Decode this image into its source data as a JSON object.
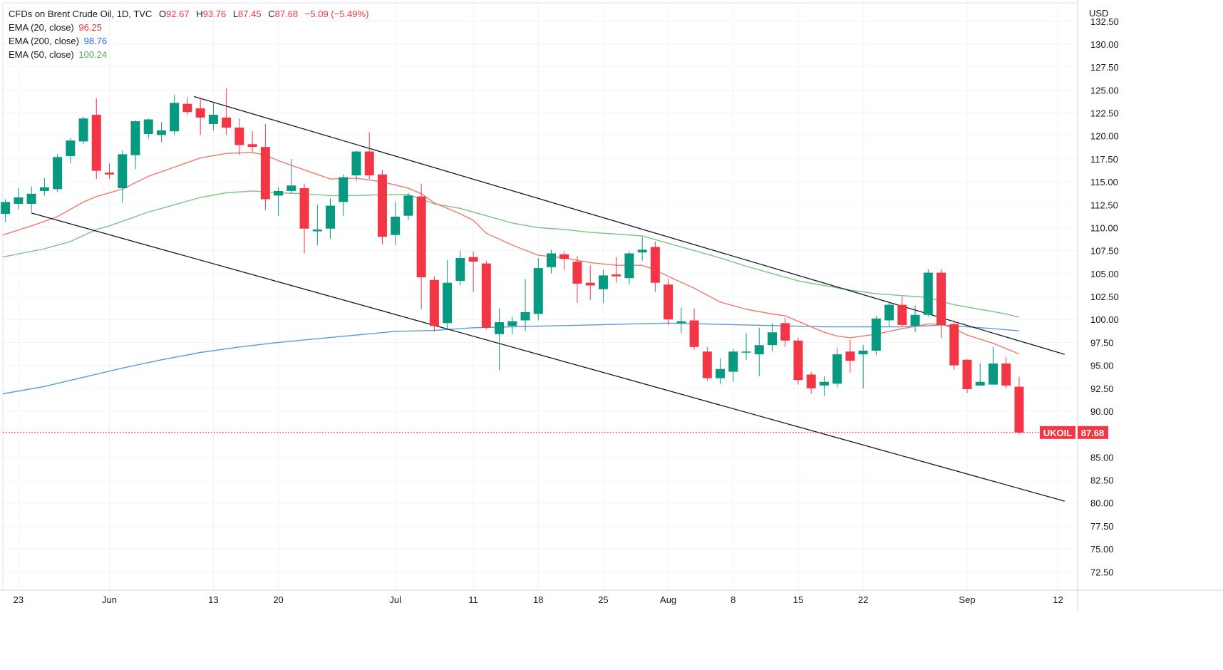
{
  "legend": {
    "title": "CFDs on Brent Crude Oil, 1D, TVC",
    "ohlc": [
      {
        "k": "O",
        "v": "92.67"
      },
      {
        "k": "H",
        "v": "93.76"
      },
      {
        "k": "L",
        "v": "87.45"
      },
      {
        "k": "C",
        "v": "87.68"
      }
    ],
    "change": "−5.09 (−5.49%)",
    "ema20": {
      "label": "EMA (20, close)",
      "value": "96.25",
      "color": "#f23645"
    },
    "ema200": {
      "label": "EMA (200, close)",
      "value": "98.76",
      "color": "#2962ff"
    },
    "ema50": {
      "label": "EMA (50, close)",
      "value": "100.24",
      "color": "#4caf50"
    }
  },
  "colors": {
    "up": "#089981",
    "down": "#f23645",
    "ema20": "#f5776b",
    "ema200": "#5b9bd5",
    "ema50": "#7bc47f",
    "trend": "#131722"
  },
  "chart_data": {
    "type": "candlestick",
    "title": "CFDs on Brent Crude Oil, 1D, TVC",
    "currency": "USD",
    "ylim": [
      70.5,
      134.5
    ],
    "y_ticks": [
      "132.50",
      "130.00",
      "127.50",
      "125.00",
      "122.50",
      "120.00",
      "117.50",
      "115.00",
      "112.50",
      "110.00",
      "107.50",
      "105.00",
      "102.50",
      "100.00",
      "97.50",
      "95.00",
      "92.50",
      "90.00",
      "85.00",
      "82.50",
      "80.00",
      "77.50",
      "75.00",
      "72.50"
    ],
    "x_ticks": [
      {
        "label": "23",
        "i": 0
      },
      {
        "label": "Jun",
        "i": 7
      },
      {
        "label": "13",
        "i": 15
      },
      {
        "label": "20",
        "i": 20
      },
      {
        "label": "Jul",
        "i": 29
      },
      {
        "label": "11",
        "i": 35
      },
      {
        "label": "18",
        "i": 40
      },
      {
        "label": "25",
        "i": 45
      },
      {
        "label": "Aug",
        "i": 50
      },
      {
        "label": "8",
        "i": 55
      },
      {
        "label": "15",
        "i": 60
      },
      {
        "label": "22",
        "i": 65
      },
      {
        "label": "Sep",
        "i": 73
      },
      {
        "label": "12",
        "i": 80
      }
    ],
    "x_range": [
      -1.2,
      81.5
    ],
    "candles": [
      {
        "i": -1,
        "o": 111.5,
        "h": 113.1,
        "l": 110.6,
        "c": 112.8
      },
      {
        "i": 0,
        "o": 112.6,
        "h": 114.3,
        "l": 112.0,
        "c": 113.3
      },
      {
        "i": 1,
        "o": 112.6,
        "h": 114.5,
        "l": 111.7,
        "c": 113.7
      },
      {
        "i": 2,
        "o": 114.0,
        "h": 115.4,
        "l": 113.5,
        "c": 114.4
      },
      {
        "i": 3,
        "o": 114.2,
        "h": 118.0,
        "l": 113.9,
        "c": 117.7
      },
      {
        "i": 4,
        "o": 117.8,
        "h": 119.8,
        "l": 117.0,
        "c": 119.5
      },
      {
        "i": 5,
        "o": 119.4,
        "h": 122.1,
        "l": 119.1,
        "c": 121.9
      },
      {
        "i": 6,
        "o": 122.3,
        "h": 124.1,
        "l": 115.3,
        "c": 116.2
      },
      {
        "i": 7,
        "o": 116.0,
        "h": 117.0,
        "l": 115.3,
        "c": 115.8
      },
      {
        "i": 8,
        "o": 114.3,
        "h": 118.4,
        "l": 112.7,
        "c": 118.0
      },
      {
        "i": 9,
        "o": 117.9,
        "h": 121.7,
        "l": 116.4,
        "c": 121.6
      },
      {
        "i": 10,
        "o": 120.2,
        "h": 121.9,
        "l": 119.7,
        "c": 121.8
      },
      {
        "i": 11,
        "o": 120.1,
        "h": 121.5,
        "l": 119.3,
        "c": 120.6
      },
      {
        "i": 12,
        "o": 120.5,
        "h": 124.5,
        "l": 120.1,
        "c": 123.6
      },
      {
        "i": 13,
        "o": 123.5,
        "h": 124.2,
        "l": 122.3,
        "c": 122.6
      },
      {
        "i": 14,
        "o": 123.0,
        "h": 124.1,
        "l": 120.1,
        "c": 122.0
      },
      {
        "i": 15,
        "o": 121.3,
        "h": 123.6,
        "l": 120.6,
        "c": 122.3
      },
      {
        "i": 16,
        "o": 122.0,
        "h": 125.2,
        "l": 120.1,
        "c": 120.9
      },
      {
        "i": 17,
        "o": 120.9,
        "h": 121.9,
        "l": 117.9,
        "c": 119.0
      },
      {
        "i": 18,
        "o": 119.1,
        "h": 120.5,
        "l": 118.2,
        "c": 118.8
      },
      {
        "i": 19,
        "o": 118.8,
        "h": 121.3,
        "l": 111.9,
        "c": 113.1
      },
      {
        "i": 20,
        "o": 113.5,
        "h": 114.4,
        "l": 111.3,
        "c": 114.0
      },
      {
        "i": 21,
        "o": 114.0,
        "h": 117.5,
        "l": 113.7,
        "c": 114.6
      },
      {
        "i": 22,
        "o": 114.3,
        "h": 114.8,
        "l": 107.2,
        "c": 109.9
      },
      {
        "i": 23,
        "o": 109.6,
        "h": 112.5,
        "l": 108.1,
        "c": 109.8
      },
      {
        "i": 24,
        "o": 109.9,
        "h": 113.2,
        "l": 108.8,
        "c": 112.4
      },
      {
        "i": 25,
        "o": 112.8,
        "h": 115.8,
        "l": 111.3,
        "c": 115.5
      },
      {
        "i": 26,
        "o": 115.7,
        "h": 118.4,
        "l": 115.1,
        "c": 118.3
      },
      {
        "i": 27,
        "o": 118.3,
        "h": 120.4,
        "l": 115.3,
        "c": 115.7
      },
      {
        "i": 28,
        "o": 115.8,
        "h": 116.3,
        "l": 108.2,
        "c": 109.0
      },
      {
        "i": 29,
        "o": 109.2,
        "h": 112.8,
        "l": 108.1,
        "c": 111.2
      },
      {
        "i": 30,
        "o": 111.3,
        "h": 113.8,
        "l": 110.8,
        "c": 113.5
      },
      {
        "i": 31,
        "o": 113.4,
        "h": 114.8,
        "l": 101.1,
        "c": 104.6
      },
      {
        "i": 32,
        "o": 104.3,
        "h": 104.7,
        "l": 98.7,
        "c": 99.3
      },
      {
        "i": 33,
        "o": 99.6,
        "h": 106.5,
        "l": 99.0,
        "c": 104.0
      },
      {
        "i": 34,
        "o": 104.2,
        "h": 107.5,
        "l": 103.7,
        "c": 106.7
      },
      {
        "i": 35,
        "o": 106.8,
        "h": 107.4,
        "l": 103.0,
        "c": 106.3
      },
      {
        "i": 36,
        "o": 106.1,
        "h": 106.4,
        "l": 98.9,
        "c": 99.1
      },
      {
        "i": 37,
        "o": 98.4,
        "h": 101.2,
        "l": 94.5,
        "c": 99.7
      },
      {
        "i": 38,
        "o": 99.3,
        "h": 100.3,
        "l": 98.4,
        "c": 99.8
      },
      {
        "i": 39,
        "o": 99.9,
        "h": 104.4,
        "l": 98.7,
        "c": 100.8
      },
      {
        "i": 40,
        "o": 100.6,
        "h": 106.7,
        "l": 99.9,
        "c": 105.6
      },
      {
        "i": 41,
        "o": 105.7,
        "h": 107.6,
        "l": 105.0,
        "c": 107.2
      },
      {
        "i": 42,
        "o": 107.1,
        "h": 107.4,
        "l": 105.4,
        "c": 106.6
      },
      {
        "i": 43,
        "o": 106.3,
        "h": 106.9,
        "l": 101.8,
        "c": 103.9
      },
      {
        "i": 44,
        "o": 104.0,
        "h": 105.9,
        "l": 102.1,
        "c": 103.7
      },
      {
        "i": 45,
        "o": 103.3,
        "h": 105.4,
        "l": 101.8,
        "c": 104.8
      },
      {
        "i": 46,
        "o": 104.9,
        "h": 106.8,
        "l": 104.0,
        "c": 104.7
      },
      {
        "i": 47,
        "o": 104.5,
        "h": 107.4,
        "l": 103.8,
        "c": 107.2
      },
      {
        "i": 48,
        "o": 107.3,
        "h": 109.0,
        "l": 106.4,
        "c": 107.6
      },
      {
        "i": 49,
        "o": 107.9,
        "h": 108.5,
        "l": 103.0,
        "c": 104.0
      },
      {
        "i": 50,
        "o": 103.8,
        "h": 104.4,
        "l": 99.4,
        "c": 100.0
      },
      {
        "i": 51,
        "o": 99.6,
        "h": 101.3,
        "l": 98.5,
        "c": 99.8
      },
      {
        "i": 52,
        "o": 99.9,
        "h": 101.2,
        "l": 96.7,
        "c": 97.0
      },
      {
        "i": 53,
        "o": 96.5,
        "h": 97.0,
        "l": 93.3,
        "c": 93.6
      },
      {
        "i": 54,
        "o": 93.6,
        "h": 95.8,
        "l": 93.0,
        "c": 94.6
      },
      {
        "i": 55,
        "o": 94.3,
        "h": 96.8,
        "l": 93.2,
        "c": 96.5
      },
      {
        "i": 56,
        "o": 96.4,
        "h": 98.5,
        "l": 95.6,
        "c": 96.5
      },
      {
        "i": 57,
        "o": 96.2,
        "h": 99.1,
        "l": 93.8,
        "c": 97.2
      },
      {
        "i": 58,
        "o": 97.2,
        "h": 99.6,
        "l": 96.5,
        "c": 98.6
      },
      {
        "i": 59,
        "o": 99.6,
        "h": 100.2,
        "l": 97.0,
        "c": 97.7
      },
      {
        "i": 60,
        "o": 97.7,
        "h": 98.0,
        "l": 92.9,
        "c": 93.4
      },
      {
        "i": 61,
        "o": 94.0,
        "h": 94.3,
        "l": 91.9,
        "c": 92.5
      },
      {
        "i": 62,
        "o": 92.8,
        "h": 93.8,
        "l": 91.7,
        "c": 93.2
      },
      {
        "i": 63,
        "o": 93.0,
        "h": 96.9,
        "l": 92.6,
        "c": 96.2
      },
      {
        "i": 64,
        "o": 96.5,
        "h": 97.8,
        "l": 94.2,
        "c": 95.5
      },
      {
        "i": 65,
        "o": 96.2,
        "h": 97.2,
        "l": 92.5,
        "c": 96.6
      },
      {
        "i": 66,
        "o": 96.6,
        "h": 100.4,
        "l": 96.1,
        "c": 100.1
      },
      {
        "i": 67,
        "o": 99.9,
        "h": 101.9,
        "l": 99.2,
        "c": 101.6
      },
      {
        "i": 68,
        "o": 101.6,
        "h": 102.5,
        "l": 99.2,
        "c": 99.4
      },
      {
        "i": 69,
        "o": 99.3,
        "h": 101.5,
        "l": 98.6,
        "c": 100.5
      },
      {
        "i": 70,
        "o": 100.5,
        "h": 105.5,
        "l": 100.3,
        "c": 105.1
      },
      {
        "i": 71,
        "o": 105.1,
        "h": 105.5,
        "l": 98.0,
        "c": 99.4
      },
      {
        "i": 72,
        "o": 99.5,
        "h": 99.9,
        "l": 94.5,
        "c": 95.0
      },
      {
        "i": 73,
        "o": 95.6,
        "h": 95.7,
        "l": 92.0,
        "c": 92.4
      },
      {
        "i": 74,
        "o": 92.8,
        "h": 95.2,
        "l": 92.8,
        "c": 93.2
      },
      {
        "i": 75,
        "o": 92.9,
        "h": 97.0,
        "l": 92.9,
        "c": 95.2
      },
      {
        "i": 76,
        "o": 95.2,
        "h": 95.9,
        "l": 92.5,
        "c": 92.8
      },
      {
        "i": 77,
        "o": 92.67,
        "h": 93.76,
        "l": 87.45,
        "c": 87.68
      }
    ],
    "ema20": [
      [
        -1.2,
        109.2
      ],
      [
        1,
        110.2
      ],
      [
        3,
        111.2
      ],
      [
        5,
        112.8
      ],
      [
        6,
        113.4
      ],
      [
        8,
        114.2
      ],
      [
        10,
        115.6
      ],
      [
        12,
        116.6
      ],
      [
        14,
        117.6
      ],
      [
        16,
        118.1
      ],
      [
        18,
        118.2
      ],
      [
        19,
        117.9
      ],
      [
        20,
        117.3
      ],
      [
        22,
        116.3
      ],
      [
        24,
        115.3
      ],
      [
        26,
        115.4
      ],
      [
        28,
        115.0
      ],
      [
        30,
        114.3
      ],
      [
        31,
        113.7
      ],
      [
        32,
        112.7
      ],
      [
        34,
        111.5
      ],
      [
        35,
        110.8
      ],
      [
        36,
        109.4
      ],
      [
        38,
        108.1
      ],
      [
        40,
        107.0
      ],
      [
        42,
        106.7
      ],
      [
        44,
        106.2
      ],
      [
        46,
        105.9
      ],
      [
        48,
        105.9
      ],
      [
        49,
        105.4
      ],
      [
        50,
        104.7
      ],
      [
        52,
        103.4
      ],
      [
        54,
        101.9
      ],
      [
        56,
        101.1
      ],
      [
        58,
        100.6
      ],
      [
        59,
        100.4
      ],
      [
        60,
        99.8
      ],
      [
        62,
        98.6
      ],
      [
        63,
        98.2
      ],
      [
        64,
        98.0
      ],
      [
        66,
        98.4
      ],
      [
        68,
        99.0
      ],
      [
        70,
        99.5
      ],
      [
        71,
        99.5
      ],
      [
        72,
        99.0
      ],
      [
        73,
        98.3
      ],
      [
        75,
        97.4
      ],
      [
        77,
        96.25
      ]
    ],
    "ema50": [
      [
        -1.2,
        106.8
      ],
      [
        2,
        107.7
      ],
      [
        4,
        108.5
      ],
      [
        6,
        109.8
      ],
      [
        7,
        110.2
      ],
      [
        10,
        111.7
      ],
      [
        12,
        112.5
      ],
      [
        14,
        113.3
      ],
      [
        16,
        113.8
      ],
      [
        18,
        114.0
      ],
      [
        20,
        113.8
      ],
      [
        22,
        113.7
      ],
      [
        24,
        113.5
      ],
      [
        26,
        113.5
      ],
      [
        28,
        113.6
      ],
      [
        30,
        113.6
      ],
      [
        31,
        113.1
      ],
      [
        32,
        112.6
      ],
      [
        34,
        112.1
      ],
      [
        36,
        111.3
      ],
      [
        38,
        110.5
      ],
      [
        40,
        110.0
      ],
      [
        42,
        109.8
      ],
      [
        44,
        109.5
      ],
      [
        46,
        109.3
      ],
      [
        48,
        109.1
      ],
      [
        50,
        108.3
      ],
      [
        52,
        107.5
      ],
      [
        54,
        106.7
      ],
      [
        56,
        105.8
      ],
      [
        58,
        105.0
      ],
      [
        60,
        104.2
      ],
      [
        62,
        103.7
      ],
      [
        64,
        103.2
      ],
      [
        66,
        102.8
      ],
      [
        68,
        102.6
      ],
      [
        70,
        102.4
      ],
      [
        71,
        102.0
      ],
      [
        72,
        101.6
      ],
      [
        74,
        101.1
      ],
      [
        76,
        100.6
      ],
      [
        77,
        100.24
      ]
    ],
    "ema200": [
      [
        -1.2,
        91.9
      ],
      [
        2,
        92.7
      ],
      [
        5,
        93.7
      ],
      [
        8,
        94.7
      ],
      [
        11,
        95.6
      ],
      [
        14,
        96.4
      ],
      [
        17,
        97.0
      ],
      [
        20,
        97.5
      ],
      [
        23,
        97.9
      ],
      [
        26,
        98.3
      ],
      [
        29,
        98.7
      ],
      [
        32,
        98.8
      ],
      [
        35,
        99.1
      ],
      [
        38,
        99.2
      ],
      [
        41,
        99.3
      ],
      [
        44,
        99.4
      ],
      [
        47,
        99.5
      ],
      [
        50,
        99.6
      ],
      [
        53,
        99.5
      ],
      [
        56,
        99.4
      ],
      [
        59,
        99.3
      ],
      [
        62,
        99.2
      ],
      [
        65,
        99.2
      ],
      [
        68,
        99.2
      ],
      [
        70,
        99.3
      ],
      [
        71,
        99.4
      ],
      [
        73,
        99.2
      ],
      [
        75,
        99.0
      ],
      [
        77,
        98.76
      ]
    ],
    "trendlines": [
      {
        "x1": 13.5,
        "y1": 124.3,
        "x2": 80.5,
        "y2": 96.2
      },
      {
        "x1": 1.0,
        "y1": 111.6,
        "x2": 80.5,
        "y2": 80.2
      }
    ],
    "last_price": {
      "label": "UKOIL",
      "value": "87.68",
      "price": 87.68
    }
  }
}
